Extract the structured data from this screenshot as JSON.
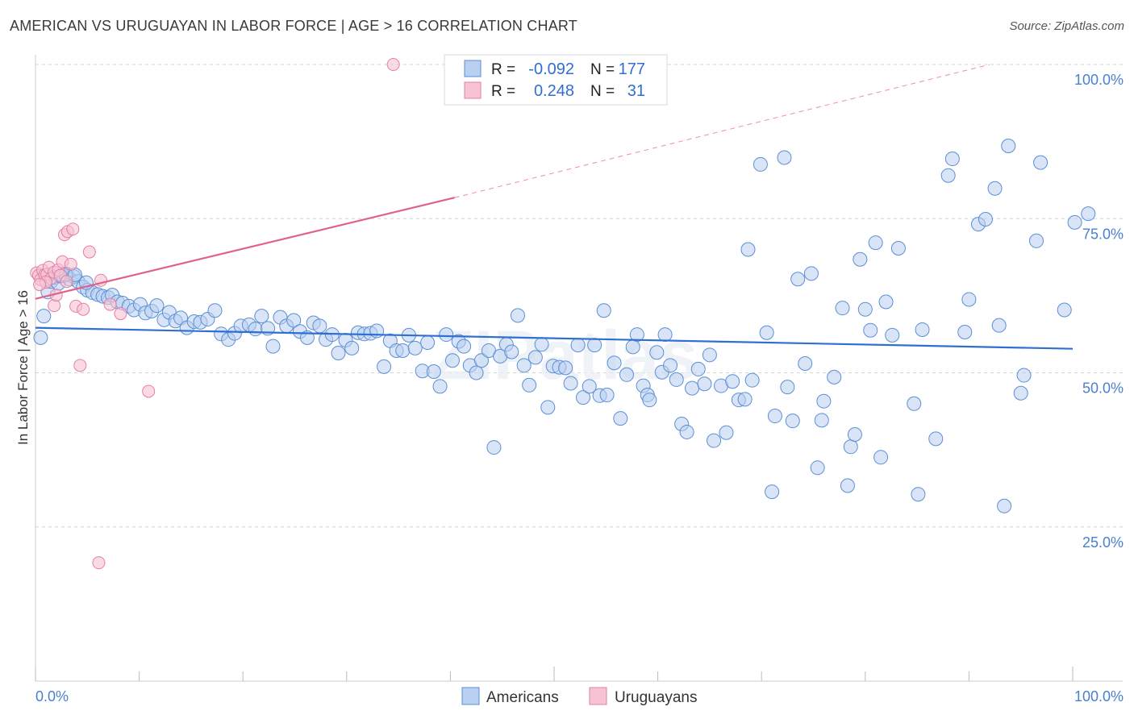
{
  "title": "AMERICAN VS URUGUAYAN IN LABOR FORCE | AGE > 16 CORRELATION CHART",
  "source": "Source: ZipAtlas.com",
  "watermark": "ZIPatlas",
  "colors": {
    "americans": "#5b8fd6",
    "americans_fill": "#b9d0f0",
    "americans_line": "#2f6fd1",
    "uruguayans": "#e37fa3",
    "uruguayans_fill": "#f6c3d4",
    "uruguayans_line": "#e0608e",
    "axis_text": "#4a7fd0",
    "grid": "#d6d6d6"
  },
  "stats": [
    {
      "r_label": "R =",
      "r_value": "-0.092",
      "n_label": "N =",
      "n_value": "177",
      "series": "americans"
    },
    {
      "r_label": "R =",
      "r_value": "0.248",
      "n_label": "N =",
      "n_value": "31",
      "series": "uruguayans"
    }
  ],
  "chart_data": {
    "type": "scatter",
    "title": "AMERICAN VS URUGUAYAN IN LABOR FORCE | AGE > 16 CORRELATION CHART",
    "xlabel": "",
    "ylabel": "In Labor Force | Age > 16",
    "xlim": [
      0,
      100
    ],
    "ylim": [
      0,
      100
    ],
    "x_tick_labels": [
      "0.0%",
      "100.0%"
    ],
    "y_ticks": [
      25,
      50,
      75,
      100
    ],
    "y_tick_labels": [
      "25.0%",
      "50.0%",
      "75.0%",
      "100.0%"
    ],
    "grid": true,
    "legend_position": "bottom",
    "series": [
      {
        "name": "Americans",
        "color": "#5b8fd6",
        "trend": {
          "x": [
            0,
            100
          ],
          "y": [
            57.3,
            53.9
          ],
          "style": "solid"
        },
        "points": [
          [
            0.5,
            55.7
          ],
          [
            0.8,
            59.2
          ],
          [
            1.2,
            63.1
          ],
          [
            1.5,
            64.8
          ],
          [
            1.9,
            65.5
          ],
          [
            2.2,
            64.5
          ],
          [
            2.6,
            65.8
          ],
          [
            3.0,
            66.0
          ],
          [
            3.3,
            65.2
          ],
          [
            3.7,
            65.6
          ],
          [
            4.1,
            64.8
          ],
          [
            4.6,
            63.9
          ],
          [
            5.0,
            63.4
          ],
          [
            5.5,
            63.0
          ],
          [
            6.0,
            62.7
          ],
          [
            6.5,
            62.4
          ],
          [
            7.0,
            62.2
          ],
          [
            7.4,
            62.6
          ],
          [
            7.9,
            61.5
          ],
          [
            8.4,
            61.3
          ],
          [
            9.0,
            60.8
          ],
          [
            9.5,
            60.2
          ],
          [
            10.1,
            61.1
          ],
          [
            10.6,
            59.7
          ],
          [
            11.2,
            60.0
          ],
          [
            11.7,
            60.9
          ],
          [
            12.4,
            58.6
          ],
          [
            12.9,
            59.8
          ],
          [
            13.5,
            58.4
          ],
          [
            14.0,
            58.9
          ],
          [
            14.6,
            57.3
          ],
          [
            15.3,
            58.3
          ],
          [
            15.9,
            58.2
          ],
          [
            16.6,
            58.7
          ],
          [
            17.3,
            60.1
          ],
          [
            17.9,
            56.3
          ],
          [
            18.6,
            55.4
          ],
          [
            19.2,
            56.4
          ],
          [
            19.8,
            57.6
          ],
          [
            20.6,
            57.8
          ],
          [
            21.2,
            57.1
          ],
          [
            21.8,
            59.2
          ],
          [
            22.4,
            57.2
          ],
          [
            22.9,
            54.3
          ],
          [
            23.6,
            59.0
          ],
          [
            24.2,
            57.6
          ],
          [
            24.9,
            58.5
          ],
          [
            25.5,
            56.7
          ],
          [
            26.2,
            55.7
          ],
          [
            26.8,
            58.1
          ],
          [
            27.4,
            57.6
          ],
          [
            28.0,
            55.4
          ],
          [
            28.6,
            56.2
          ],
          [
            29.2,
            53.2
          ],
          [
            29.9,
            55.3
          ],
          [
            30.5,
            54.0
          ],
          [
            31.1,
            56.5
          ],
          [
            31.7,
            56.3
          ],
          [
            32.3,
            56.4
          ],
          [
            32.9,
            56.8
          ],
          [
            33.6,
            51.0
          ],
          [
            34.2,
            55.2
          ],
          [
            34.8,
            53.6
          ],
          [
            35.4,
            53.6
          ],
          [
            36.0,
            56.1
          ],
          [
            36.6,
            54.0
          ],
          [
            37.3,
            50.3
          ],
          [
            37.8,
            54.9
          ],
          [
            38.4,
            50.2
          ],
          [
            39.0,
            47.8
          ],
          [
            39.6,
            56.2
          ],
          [
            40.2,
            52.0
          ],
          [
            40.8,
            55.1
          ],
          [
            41.3,
            54.3
          ],
          [
            41.9,
            51.2
          ],
          [
            42.5,
            50.0
          ],
          [
            43.0,
            52.0
          ],
          [
            43.7,
            53.6
          ],
          [
            44.2,
            37.9
          ],
          [
            44.8,
            52.7
          ],
          [
            45.4,
            54.6
          ],
          [
            45.9,
            53.4
          ],
          [
            46.5,
            59.3
          ],
          [
            47.1,
            51.2
          ],
          [
            47.6,
            48.0
          ],
          [
            48.2,
            52.5
          ],
          [
            48.8,
            54.6
          ],
          [
            49.4,
            44.4
          ],
          [
            49.9,
            51.1
          ],
          [
            50.5,
            50.9
          ],
          [
            51.1,
            50.8
          ],
          [
            51.6,
            48.3
          ],
          [
            52.3,
            54.5
          ],
          [
            52.8,
            46.0
          ],
          [
            53.4,
            47.8
          ],
          [
            53.9,
            54.5
          ],
          [
            54.4,
            46.3
          ],
          [
            54.8,
            60.1
          ],
          [
            55.1,
            46.4
          ],
          [
            55.8,
            51.6
          ],
          [
            56.4,
            42.6
          ],
          [
            57.0,
            49.7
          ],
          [
            57.6,
            54.2
          ],
          [
            58.0,
            56.2
          ],
          [
            58.6,
            47.9
          ],
          [
            59.0,
            46.4
          ],
          [
            59.2,
            45.6
          ],
          [
            59.9,
            53.3
          ],
          [
            60.4,
            50.1
          ],
          [
            60.7,
            56.2
          ],
          [
            61.2,
            51.2
          ],
          [
            61.8,
            48.9
          ],
          [
            62.3,
            41.7
          ],
          [
            62.8,
            40.4
          ],
          [
            63.3,
            47.5
          ],
          [
            63.9,
            50.6
          ],
          [
            64.5,
            48.2
          ],
          [
            65.0,
            52.9
          ],
          [
            65.4,
            39.0
          ],
          [
            66.1,
            47.9
          ],
          [
            66.6,
            40.3
          ],
          [
            67.2,
            48.6
          ],
          [
            67.8,
            45.6
          ],
          [
            68.4,
            45.7
          ],
          [
            68.7,
            70.0
          ],
          [
            69.1,
            48.8
          ],
          [
            69.9,
            83.8
          ],
          [
            70.5,
            56.5
          ],
          [
            71.0,
            30.7
          ],
          [
            71.3,
            43.0
          ],
          [
            72.2,
            84.9
          ],
          [
            72.5,
            47.7
          ],
          [
            73.0,
            42.2
          ],
          [
            73.5,
            65.2
          ],
          [
            74.2,
            51.5
          ],
          [
            74.8,
            66.1
          ],
          [
            75.4,
            34.6
          ],
          [
            75.8,
            42.3
          ],
          [
            76.0,
            45.4
          ],
          [
            77.0,
            49.3
          ],
          [
            77.8,
            60.5
          ],
          [
            78.3,
            31.7
          ],
          [
            78.6,
            38.0
          ],
          [
            79.0,
            40.0
          ],
          [
            79.5,
            68.4
          ],
          [
            80.0,
            60.3
          ],
          [
            80.5,
            56.9
          ],
          [
            81.0,
            71.1
          ],
          [
            81.5,
            36.3
          ],
          [
            82.0,
            61.5
          ],
          [
            82.6,
            56.1
          ],
          [
            83.2,
            70.2
          ],
          [
            84.7,
            45.0
          ],
          [
            85.1,
            30.3
          ],
          [
            85.5,
            57.0
          ],
          [
            86.8,
            39.3
          ],
          [
            88.0,
            82.0
          ],
          [
            88.4,
            84.7
          ],
          [
            89.6,
            56.6
          ],
          [
            90.0,
            61.9
          ],
          [
            90.9,
            74.1
          ],
          [
            91.6,
            74.9
          ],
          [
            92.5,
            79.9
          ],
          [
            92.9,
            57.7
          ],
          [
            93.4,
            28.4
          ],
          [
            93.8,
            86.8
          ],
          [
            95.0,
            46.7
          ],
          [
            95.3,
            49.6
          ],
          [
            96.5,
            71.4
          ],
          [
            96.9,
            84.1
          ],
          [
            99.2,
            60.2
          ],
          [
            100.2,
            74.4
          ],
          [
            101.5,
            75.8
          ],
          [
            2.4,
            65.7
          ],
          [
            2.9,
            65.9
          ],
          [
            3.8,
            65.9
          ],
          [
            4.9,
            64.6
          ]
        ]
      },
      {
        "name": "Uruguayans",
        "color": "#e37fa3",
        "trend": {
          "x": [
            0,
            40.4
          ],
          "y": [
            62.0,
            78.4
          ],
          "style": "solid",
          "dashed_extension": {
            "x": [
              40.4,
              92.0
            ],
            "y": [
              78.4,
              100.0
            ]
          }
        },
        "points": [
          [
            0.1,
            66.2
          ],
          [
            0.3,
            65.8
          ],
          [
            0.5,
            65.1
          ],
          [
            0.7,
            66.6
          ],
          [
            0.9,
            65.9
          ],
          [
            1.1,
            66.0
          ],
          [
            1.3,
            67.1
          ],
          [
            1.5,
            65.3
          ],
          [
            1.8,
            66.3
          ],
          [
            1.8,
            60.9
          ],
          [
            2.0,
            62.6
          ],
          [
            2.2,
            66.7
          ],
          [
            2.4,
            65.8
          ],
          [
            2.6,
            68.0
          ],
          [
            2.8,
            72.4
          ],
          [
            3.0,
            64.8
          ],
          [
            3.1,
            72.9
          ],
          [
            3.4,
            67.6
          ],
          [
            3.6,
            73.3
          ],
          [
            3.9,
            60.8
          ],
          [
            4.3,
            51.2
          ],
          [
            4.6,
            60.3
          ],
          [
            5.2,
            69.6
          ],
          [
            6.3,
            65.0
          ],
          [
            7.2,
            61.1
          ],
          [
            8.2,
            59.6
          ],
          [
            10.9,
            47.0
          ],
          [
            34.5,
            100.0
          ],
          [
            6.1,
            19.2
          ],
          [
            1.0,
            64.7
          ],
          [
            0.4,
            64.3
          ]
        ]
      }
    ]
  }
}
